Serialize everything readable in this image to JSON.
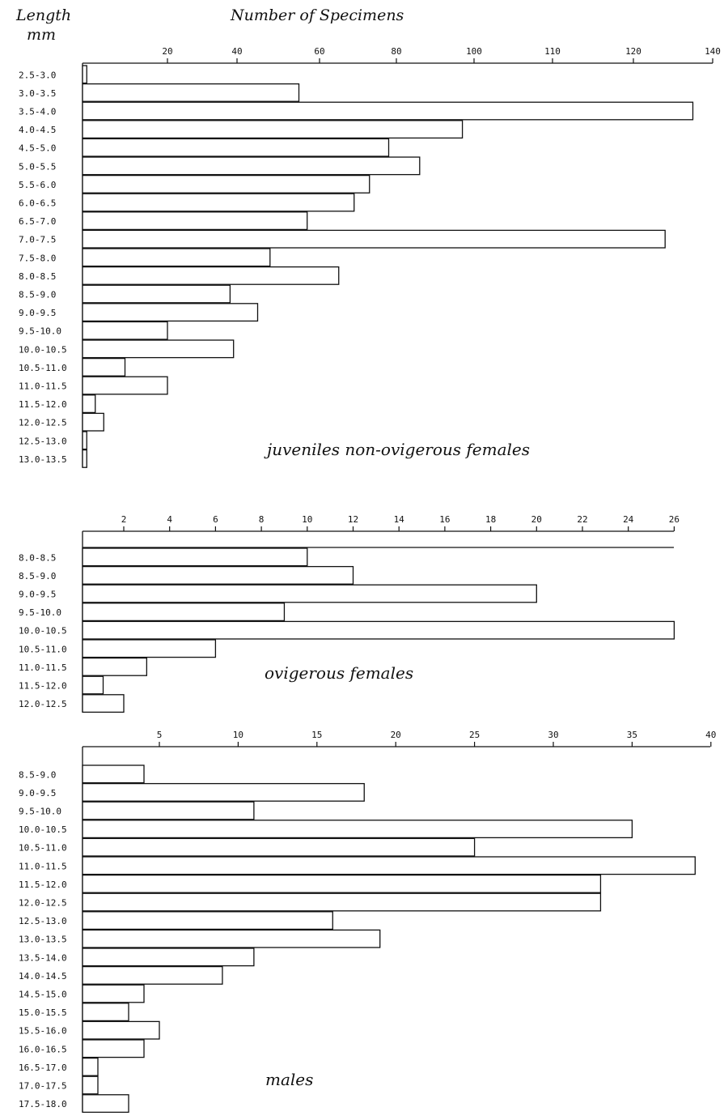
{
  "headers": {
    "length_line1": "Length",
    "length_line2": "mm",
    "count_title": "Number of Specimens"
  },
  "chart_data": [
    {
      "type": "bar",
      "orientation": "horizontal",
      "title": "juveniles non-ovigerous females",
      "xlabel": "Number of Specimens",
      "ylabel": "Length mm",
      "xlim": [
        0,
        140
      ],
      "xticks": [
        20,
        40,
        60,
        80,
        100,
        110,
        120,
        140
      ],
      "categories": [
        "2.5-3.0",
        "3.0-3.5",
        "3.5-4.0",
        "4.0-4.5",
        "4.5-5.0",
        "5.0-5.5",
        "5.5-6.0",
        "6.0-6.5",
        "6.5-7.0",
        "7.0-7.5",
        "7.5-8.0",
        "8.0-8.5",
        "8.5-9.0",
        "9.0-9.5",
        "9.5-10.0",
        "10.0-10.5",
        "10.5-11.0",
        "11.0-11.5",
        "11.5-12.0",
        "12.0-12.5",
        "12.5-13.0",
        "13.0-13.5"
      ],
      "values": [
        1,
        55,
        135,
        97,
        78,
        86,
        73,
        69,
        57,
        128,
        48,
        65,
        38,
        45,
        20,
        39,
        10,
        20,
        3,
        5,
        1,
        1
      ],
      "grid": false
    },
    {
      "type": "bar",
      "orientation": "horizontal",
      "title": "ovigerous females",
      "xlabel": "Number of Specimens",
      "ylabel": "Length mm",
      "xlim": [
        0,
        26
      ],
      "xticks": [
        2,
        4,
        6,
        8,
        10,
        12,
        14,
        16,
        18,
        20,
        22,
        24,
        26
      ],
      "categories": [
        "8.0-8.5",
        "8.5-9.0",
        "9.0-9.5",
        "9.5-10.0",
        "10.0-10.5",
        "10.5-11.0",
        "11.0-11.5",
        "11.5-12.0",
        "12.0-12.5"
      ],
      "values": [
        10,
        12,
        20,
        9,
        26,
        6,
        3,
        1,
        2
      ],
      "grid": false
    },
    {
      "type": "bar",
      "orientation": "horizontal",
      "title": "males",
      "xlabel": "Number of Specimens",
      "ylabel": "Length mm",
      "xlim": [
        0,
        40
      ],
      "xticks": [
        5,
        10,
        15,
        20,
        25,
        30,
        35,
        40
      ],
      "categories": [
        "8.5-9.0",
        "9.0-9.5",
        "9.5-10.0",
        "10.0-10.5",
        "10.5-11.0",
        "11.0-11.5",
        "11.5-12.0",
        "12.0-12.5",
        "12.5-13.0",
        "13.0-13.5",
        "13.5-14.0",
        "14.0-14.5",
        "14.5-15.0",
        "15.0-15.5",
        "15.5-16.0",
        "16.0-16.5",
        "16.5-17.0",
        "17.0-17.5",
        "17.5-18.0"
      ],
      "values": [
        4,
        18,
        11,
        35,
        25,
        39,
        33,
        33,
        16,
        19,
        11,
        9,
        4,
        3,
        5,
        4,
        1,
        1,
        3
      ],
      "grid": false
    }
  ]
}
